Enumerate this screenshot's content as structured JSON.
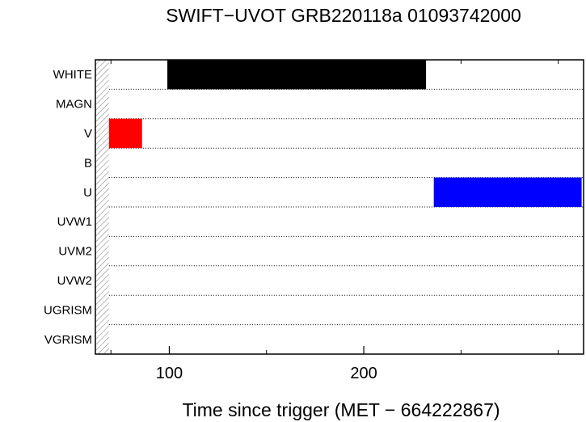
{
  "chart_data": {
    "type": "bar",
    "orientation": "horizontal",
    "title": "SWIFT−UVOT GRB220118a 01093742000",
    "xlabel": "Time since trigger (MET − 664222867)",
    "ylabel": "",
    "xlim": [
      62,
      313
    ],
    "xticks": [
      {
        "value": 100,
        "label": "100"
      },
      {
        "value": 200,
        "label": "200"
      }
    ],
    "xminor_ticks": [
      70,
      150,
      250,
      300
    ],
    "categories": [
      "WHITE",
      "MAGN",
      "V",
      "B",
      "U",
      "UVW1",
      "UVM2",
      "UVW2",
      "UGRISM",
      "VGRISM"
    ],
    "series": [
      {
        "category": "WHITE",
        "start": 99,
        "end": 232,
        "color": "#000000"
      },
      {
        "category": "V",
        "start": 69,
        "end": 86,
        "color": "#ff0000"
      },
      {
        "category": "U",
        "start": 236,
        "end": 312,
        "color": "#0000ff"
      }
    ],
    "hatched_region": [
      62,
      69
    ],
    "row_separators": "dotted",
    "grid": false
  }
}
